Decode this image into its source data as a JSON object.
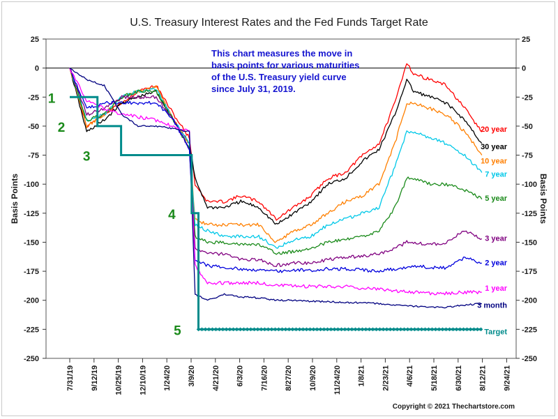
{
  "chart_data": {
    "type": "line",
    "title": "U.S. Treasury Interest Rates and the Fed Funds Target Rate",
    "ylabel_left": "Basis Points",
    "ylabel_right": "Basis Points",
    "ylim": [
      -250,
      25
    ],
    "y_ticks": [
      25,
      0,
      -25,
      -50,
      -75,
      -100,
      -125,
      -150,
      -175,
      -200,
      -225,
      -250
    ],
    "x_ticks": [
      "7/31/19",
      "9/12/19",
      "10/25/19",
      "12/10/19",
      "1/24/20",
      "3/9/20",
      "4/21/20",
      "6/3/20",
      "7/16/20",
      "8/27/20",
      "10/9/20",
      "11/24/20",
      "1/8/21",
      "2/23/21",
      "4/6/21",
      "5/18/21",
      "6/30/21",
      "8/12/21",
      "9/24/21"
    ],
    "grid": false,
    "annotation": [
      "This chart measures the move in",
      "basis points for various maturities",
      "of the U.S. Treasury yield curve",
      "since July 31, 2019."
    ],
    "markers": [
      {
        "label": "1",
        "x": "8/5/19",
        "y": -25
      },
      {
        "label": "2",
        "x": "8/5/19",
        "y": -50
      },
      {
        "label": "3",
        "x": "10/1/19",
        "y": -75
      },
      {
        "label": "4",
        "x": "3/5/20",
        "y": -125
      },
      {
        "label": "5",
        "x": "3/5/20",
        "y": -225
      }
    ],
    "series": [
      {
        "name": "20 year",
        "color": "#ff0000",
        "x": [
          "7/31/19",
          "8/30/19",
          "9/30/19",
          "10/31/19",
          "11/29/19",
          "12/31/19",
          "1/31/20",
          "2/28/20",
          "3/9/20",
          "3/31/20",
          "4/30/20",
          "5/29/20",
          "6/30/20",
          "7/31/20",
          "8/31/20",
          "9/30/20",
          "10/30/20",
          "11/30/20",
          "12/31/20",
          "1/29/21",
          "2/26/21",
          "3/19/21",
          "3/31/21",
          "4/30/21",
          "5/28/21",
          "6/30/21",
          "7/30/21"
        ],
        "values": [
          0,
          -50,
          -40,
          -30,
          -20,
          -15,
          -40,
          -60,
          -100,
          -115,
          -115,
          -110,
          -115,
          -130,
          -120,
          -110,
          -95,
          -90,
          -75,
          -65,
          -30,
          5,
          -5,
          -10,
          -15,
          -35,
          -55
        ]
      },
      {
        "name": "30 year",
        "color": "#000000",
        "x": [
          "7/31/19",
          "8/30/19",
          "9/30/19",
          "10/31/19",
          "11/29/19",
          "12/31/19",
          "1/31/20",
          "2/28/20",
          "3/9/20",
          "3/31/20",
          "4/30/20",
          "5/29/20",
          "6/30/20",
          "7/31/20",
          "8/31/20",
          "9/30/20",
          "10/30/20",
          "11/30/20",
          "12/31/20",
          "1/29/21",
          "2/26/21",
          "3/19/21",
          "3/31/21",
          "4/30/21",
          "5/28/21",
          "6/30/21",
          "7/30/21"
        ],
        "values": [
          0,
          -55,
          -45,
          -30,
          -25,
          -20,
          -45,
          -65,
          -95,
          -120,
          -120,
          -115,
          -120,
          -135,
          -125,
          -115,
          -100,
          -95,
          -80,
          -70,
          -40,
          -10,
          -20,
          -25,
          -30,
          -45,
          -65
        ]
      },
      {
        "name": "10 year",
        "color": "#ff7f00",
        "x": [
          "7/31/19",
          "8/30/19",
          "9/30/19",
          "10/31/19",
          "11/29/19",
          "12/31/19",
          "1/31/20",
          "2/28/20",
          "3/9/20",
          "3/31/20",
          "4/30/20",
          "5/29/20",
          "6/30/20",
          "7/31/20",
          "8/31/20",
          "9/30/20",
          "10/30/20",
          "11/30/20",
          "12/31/20",
          "1/29/21",
          "2/26/21",
          "3/19/21",
          "3/31/21",
          "4/30/21",
          "5/28/21",
          "6/30/21",
          "7/30/21"
        ],
        "values": [
          0,
          -50,
          -40,
          -25,
          -20,
          -15,
          -45,
          -65,
          -130,
          -135,
          -135,
          -135,
          -135,
          -150,
          -140,
          -135,
          -125,
          -115,
          -110,
          -100,
          -65,
          -30,
          -30,
          -35,
          -40,
          -55,
          -75
        ]
      },
      {
        "name": "7 year",
        "color": "#00c8e8",
        "x": [
          "7/31/19",
          "8/30/19",
          "9/30/19",
          "10/31/19",
          "11/29/19",
          "12/31/19",
          "1/31/20",
          "2/28/20",
          "3/9/20",
          "3/31/20",
          "4/30/20",
          "5/29/20",
          "6/30/20",
          "7/31/20",
          "8/31/20",
          "9/30/20",
          "10/30/20",
          "11/30/20",
          "12/31/20",
          "1/29/21",
          "2/26/21",
          "3/19/21",
          "3/31/21",
          "4/30/21",
          "5/28/21",
          "6/30/21",
          "7/30/21"
        ],
        "values": [
          0,
          -45,
          -40,
          -25,
          -20,
          -18,
          -45,
          -65,
          -135,
          -140,
          -145,
          -145,
          -145,
          -155,
          -148,
          -145,
          -135,
          -130,
          -125,
          -120,
          -85,
          -55,
          -55,
          -60,
          -65,
          -75,
          -90
        ]
      },
      {
        "name": "5 year",
        "color": "#1a8a1a",
        "x": [
          "7/31/19",
          "8/30/19",
          "9/30/19",
          "10/31/19",
          "11/29/19",
          "12/31/19",
          "1/31/20",
          "2/28/20",
          "3/9/20",
          "3/31/20",
          "4/30/20",
          "5/29/20",
          "6/30/20",
          "7/31/20",
          "8/31/20",
          "9/30/20",
          "10/30/20",
          "11/30/20",
          "12/31/20",
          "1/29/21",
          "2/26/21",
          "3/19/21",
          "3/31/21",
          "4/30/21",
          "5/28/21",
          "6/30/21",
          "7/30/21"
        ],
        "values": [
          0,
          -45,
          -40,
          -25,
          -20,
          -20,
          -45,
          -70,
          -145,
          -150,
          -150,
          -152,
          -152,
          -160,
          -158,
          -155,
          -150,
          -148,
          -145,
          -140,
          -120,
          -95,
          -95,
          -100,
          -100,
          -105,
          -113
        ]
      },
      {
        "name": "3 year",
        "color": "#800080",
        "x": [
          "7/31/19",
          "8/30/19",
          "9/30/19",
          "10/31/19",
          "11/29/19",
          "12/31/19",
          "1/31/20",
          "2/28/20",
          "3/9/20",
          "3/31/20",
          "4/30/20",
          "5/29/20",
          "6/30/20",
          "7/31/20",
          "8/31/20",
          "9/30/20",
          "10/30/20",
          "11/30/20",
          "12/31/20",
          "1/29/21",
          "2/26/21",
          "3/19/21",
          "3/31/21",
          "4/30/21",
          "5/28/21",
          "6/30/21",
          "7/30/21"
        ],
        "values": [
          0,
          -40,
          -35,
          -25,
          -25,
          -25,
          -45,
          -70,
          -155,
          -160,
          -160,
          -165,
          -165,
          -170,
          -168,
          -168,
          -165,
          -163,
          -162,
          -160,
          -155,
          -150,
          -150,
          -152,
          -150,
          -140,
          -147
        ]
      },
      {
        "name": "2 year",
        "color": "#0000dd",
        "x": [
          "7/31/19",
          "8/30/19",
          "9/30/19",
          "10/31/19",
          "11/29/19",
          "12/31/19",
          "1/31/20",
          "2/28/20",
          "3/9/20",
          "3/31/20",
          "4/30/20",
          "5/29/20",
          "6/30/20",
          "7/31/20",
          "8/31/20",
          "9/30/20",
          "10/30/20",
          "11/30/20",
          "12/31/20",
          "1/29/21",
          "2/26/21",
          "3/19/21",
          "3/31/21",
          "4/30/21",
          "5/28/21",
          "6/30/21",
          "7/30/21"
        ],
        "values": [
          0,
          -35,
          -30,
          -30,
          -30,
          -30,
          -45,
          -70,
          -165,
          -170,
          -172,
          -173,
          -174,
          -175,
          -174,
          -174,
          -173,
          -173,
          -174,
          -175,
          -173,
          -172,
          -170,
          -172,
          -172,
          -163,
          -168
        ]
      },
      {
        "name": "1 year",
        "color": "#ff00ff",
        "x": [
          "7/31/19",
          "8/30/19",
          "9/30/19",
          "10/31/19",
          "11/29/19",
          "12/31/19",
          "1/31/20",
          "2/28/20",
          "3/9/20",
          "3/31/20",
          "4/30/20",
          "5/29/20",
          "6/30/20",
          "7/31/20",
          "8/31/20",
          "9/30/20",
          "10/30/20",
          "11/30/20",
          "12/31/20",
          "1/29/21",
          "2/26/21",
          "3/19/21",
          "3/31/21",
          "4/30/21",
          "5/28/21",
          "6/30/21",
          "7/30/21"
        ],
        "values": [
          0,
          -28,
          -35,
          -40,
          -42,
          -45,
          -50,
          -55,
          -170,
          -185,
          -185,
          -185,
          -185,
          -187,
          -188,
          -188,
          -188,
          -188,
          -190,
          -190,
          -192,
          -192,
          -193,
          -194,
          -194,
          -193,
          -193
        ]
      },
      {
        "name": "3 month",
        "color": "#000080",
        "x": [
          "7/31/19",
          "8/30/19",
          "9/30/19",
          "10/31/19",
          "11/29/19",
          "12/31/19",
          "1/31/20",
          "2/28/20",
          "3/9/20",
          "3/31/20",
          "4/30/20",
          "5/29/20",
          "6/30/20",
          "7/31/20",
          "8/31/20",
          "9/30/20",
          "10/30/20",
          "11/30/20",
          "12/31/20",
          "1/29/21",
          "2/26/21",
          "3/19/21",
          "3/31/21",
          "4/30/21",
          "5/28/21",
          "6/30/21",
          "7/30/21"
        ],
        "values": [
          0,
          -10,
          -15,
          -40,
          -50,
          -50,
          -52,
          -55,
          -195,
          -200,
          -195,
          -197,
          -198,
          -200,
          -200,
          -201,
          -201,
          -202,
          -202,
          -203,
          -204,
          -205,
          -205,
          -206,
          -206,
          -204,
          -203
        ]
      },
      {
        "name": "Target",
        "color": "#008b8b",
        "x": [
          "7/31/19",
          "9/18/19",
          "10/30/19",
          "3/3/20",
          "3/15/20",
          "7/30/21"
        ],
        "values": [
          -25,
          -50,
          -75,
          -125,
          -225,
          -225
        ]
      }
    ]
  },
  "copyright": "Copyright © 2021 Thechartstore.com"
}
